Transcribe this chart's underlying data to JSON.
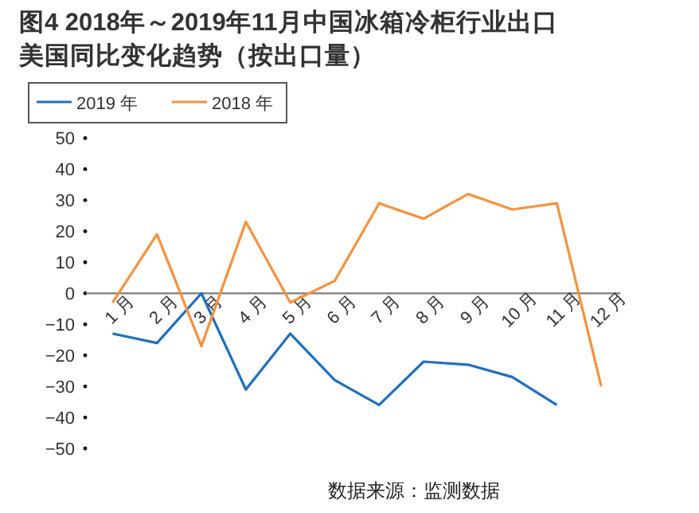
{
  "chart_data": {
    "type": "line",
    "title": "图4  2018年～2019年11月中国冰箱冷柜行业出口",
    "subtitle": "美国同比变化趋势（按出口量）",
    "categories": [
      "1 月",
      "2 月",
      "3 月",
      "4 月",
      "5 月",
      "6 月",
      "7 月",
      "8 月",
      "9 月",
      "10 月",
      "11 月",
      "12 月"
    ],
    "series": [
      {
        "name": "2019 年",
        "color": "#1f6fbf",
        "values": [
          -13,
          -16,
          0,
          -31,
          -13,
          -28,
          -36,
          -22,
          -23,
          -27,
          -36,
          null
        ]
      },
      {
        "name": "2018 年",
        "color": "#f5923e",
        "values": [
          -3,
          19,
          -17,
          23,
          -3,
          4,
          29,
          24,
          32,
          27,
          29,
          -30
        ]
      }
    ],
    "ylim": [
      -50,
      50
    ],
    "yticks": [
      -50,
      -40,
      -30,
      -20,
      -10,
      0,
      10,
      20,
      30,
      40,
      50
    ],
    "legend": "top",
    "grid": false,
    "marker": "none",
    "line_style": "solid",
    "annotations": [
      "数据来源：监测数据"
    ]
  }
}
